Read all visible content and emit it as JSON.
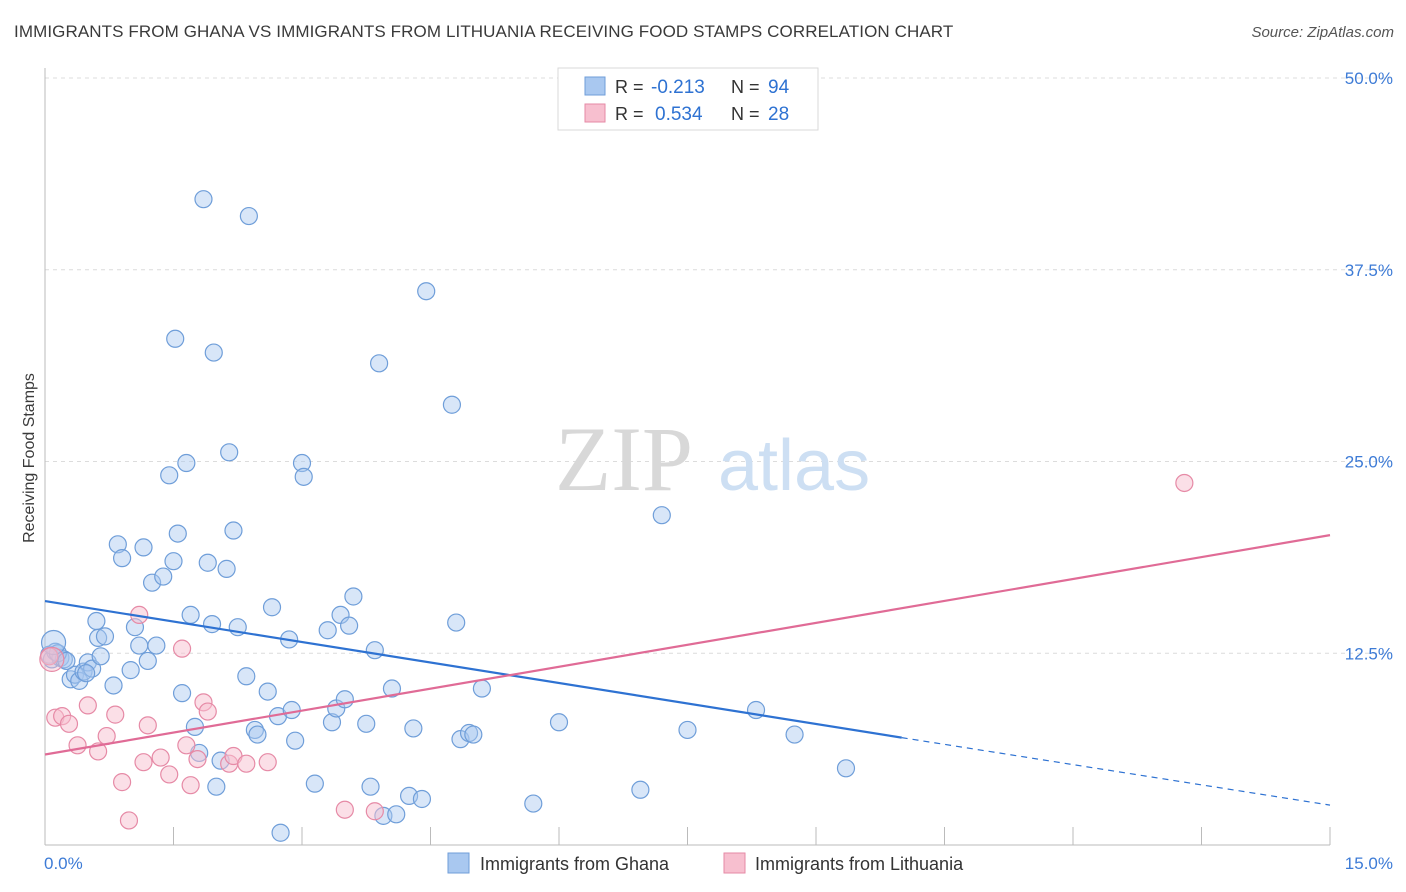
{
  "chart_data": {
    "type": "scatter",
    "title": "IMMIGRANTS FROM GHANA VS IMMIGRANTS FROM LITHUANIA RECEIVING FOOD STAMPS CORRELATION CHART",
    "source": "Source: ZipAtlas.com",
    "ylabel": "Receiving Food Stamps",
    "xlabel": "",
    "xlim": [
      0,
      15
    ],
    "ylim": [
      0,
      50
    ],
    "x_tick_labels": [
      "0.0%",
      "15.0%"
    ],
    "y_tick_labels": [
      "12.5%",
      "25.0%",
      "37.5%",
      "50.0%"
    ],
    "y_ticks": [
      12.5,
      25,
      37.5,
      50
    ],
    "grid": true,
    "watermark": "ZIPatlas",
    "legend_position": "top-center",
    "stats": [
      {
        "r_label": "R =",
        "r_value": "-0.213",
        "n_label": "N =",
        "n_value": "94"
      },
      {
        "r_label": "R =",
        "r_value": "0.534",
        "n_label": "N =",
        "n_value": "28"
      }
    ],
    "series": [
      {
        "name": "Immigrants from Ghana",
        "color": "#a9c8f0",
        "edge_color": "#6f9ed9",
        "line_color": "#2e72d2",
        "trend": {
          "x0": 0,
          "y0": 15.9,
          "x1": 10.0,
          "y1": 7.0,
          "dashed_to_x": 15,
          "dashed_to_y": 2.6
        },
        "points": [
          [
            0.05,
            12.4
          ],
          [
            0.08,
            12.1
          ],
          [
            0.12,
            12.6
          ],
          [
            0.18,
            12.2
          ],
          [
            0.22,
            12.1
          ],
          [
            0.3,
            10.8
          ],
          [
            0.35,
            11.1
          ],
          [
            0.4,
            10.7
          ],
          [
            0.45,
            11.3
          ],
          [
            0.5,
            11.9
          ],
          [
            0.55,
            11.5
          ],
          [
            0.6,
            14.6
          ],
          [
            0.62,
            13.5
          ],
          [
            0.7,
            13.6
          ],
          [
            0.8,
            10.4
          ],
          [
            0.85,
            19.6
          ],
          [
            0.9,
            18.7
          ],
          [
            1.0,
            11.4
          ],
          [
            1.05,
            14.2
          ],
          [
            1.1,
            13.0
          ],
          [
            1.15,
            19.4
          ],
          [
            1.2,
            12.0
          ],
          [
            1.25,
            17.1
          ],
          [
            1.38,
            17.5
          ],
          [
            1.45,
            24.1
          ],
          [
            1.5,
            18.5
          ],
          [
            1.52,
            33.0
          ],
          [
            1.55,
            20.3
          ],
          [
            1.6,
            9.9
          ],
          [
            1.65,
            24.9
          ],
          [
            1.7,
            15.0
          ],
          [
            1.75,
            7.7
          ],
          [
            1.8,
            6.0
          ],
          [
            1.85,
            42.1
          ],
          [
            1.9,
            18.4
          ],
          [
            1.95,
            14.4
          ],
          [
            1.97,
            32.1
          ],
          [
            2.0,
            3.8
          ],
          [
            2.05,
            5.5
          ],
          [
            2.12,
            18.0
          ],
          [
            2.15,
            25.6
          ],
          [
            2.2,
            20.5
          ],
          [
            2.25,
            14.2
          ],
          [
            2.38,
            41.0
          ],
          [
            2.45,
            7.5
          ],
          [
            2.48,
            7.2
          ],
          [
            2.6,
            10.0
          ],
          [
            2.65,
            15.5
          ],
          [
            2.72,
            8.4
          ],
          [
            2.75,
            0.8
          ],
          [
            2.85,
            13.4
          ],
          [
            2.88,
            8.8
          ],
          [
            2.92,
            6.8
          ],
          [
            3.0,
            24.9
          ],
          [
            3.02,
            24.0
          ],
          [
            3.15,
            4.0
          ],
          [
            3.3,
            14.0
          ],
          [
            3.35,
            8.0
          ],
          [
            3.4,
            8.9
          ],
          [
            3.45,
            15.0
          ],
          [
            3.5,
            9.5
          ],
          [
            3.55,
            14.3
          ],
          [
            3.6,
            16.2
          ],
          [
            3.75,
            7.9
          ],
          [
            3.8,
            3.8
          ],
          [
            3.85,
            12.7
          ],
          [
            3.9,
            31.4
          ],
          [
            3.95,
            1.9
          ],
          [
            4.05,
            10.2
          ],
          [
            4.1,
            2.0
          ],
          [
            4.25,
            3.2
          ],
          [
            4.3,
            7.6
          ],
          [
            4.4,
            3.0
          ],
          [
            4.45,
            36.1
          ],
          [
            4.75,
            28.7
          ],
          [
            4.8,
            14.5
          ],
          [
            4.85,
            6.9
          ],
          [
            4.95,
            7.3
          ],
          [
            5.0,
            7.2
          ],
          [
            5.1,
            10.2
          ],
          [
            5.7,
            2.7
          ],
          [
            6.0,
            8.0
          ],
          [
            6.95,
            3.6
          ],
          [
            7.2,
            21.5
          ],
          [
            7.5,
            7.5
          ],
          [
            8.3,
            8.8
          ],
          [
            8.75,
            7.2
          ],
          [
            9.35,
            5.0
          ],
          [
            0.15,
            12.5
          ],
          [
            0.25,
            12.0
          ],
          [
            0.48,
            11.2
          ],
          [
            0.65,
            12.3
          ],
          [
            1.3,
            13.0
          ],
          [
            2.35,
            11.0
          ]
        ]
      },
      {
        "name": "Immigrants from Lithuania",
        "color": "#f7bfcf",
        "edge_color": "#e68aa6",
        "line_color": "#e06b96",
        "trend": {
          "x0": 0,
          "y0": 5.9,
          "x1": 15,
          "y1": 20.2
        },
        "points": [
          [
            0.05,
            12.3
          ],
          [
            0.12,
            8.3
          ],
          [
            0.2,
            8.4
          ],
          [
            0.28,
            7.9
          ],
          [
            0.38,
            6.5
          ],
          [
            0.5,
            9.1
          ],
          [
            0.62,
            6.1
          ],
          [
            0.72,
            7.1
          ],
          [
            0.82,
            8.5
          ],
          [
            0.9,
            4.1
          ],
          [
            0.98,
            1.6
          ],
          [
            1.1,
            15.0
          ],
          [
            1.15,
            5.4
          ],
          [
            1.2,
            7.8
          ],
          [
            1.35,
            5.7
          ],
          [
            1.45,
            4.6
          ],
          [
            1.6,
            12.8
          ],
          [
            1.65,
            6.5
          ],
          [
            1.7,
            3.9
          ],
          [
            1.78,
            5.6
          ],
          [
            1.85,
            9.3
          ],
          [
            1.9,
            8.7
          ],
          [
            2.15,
            5.3
          ],
          [
            2.2,
            5.8
          ],
          [
            2.35,
            5.3
          ],
          [
            2.6,
            5.4
          ],
          [
            3.5,
            2.3
          ],
          [
            3.85,
            2.2
          ]
        ]
      }
    ],
    "extra_points": {
      "Immigrants from Lithuania": [
        [
          13.3,
          23.6
        ]
      ]
    }
  }
}
